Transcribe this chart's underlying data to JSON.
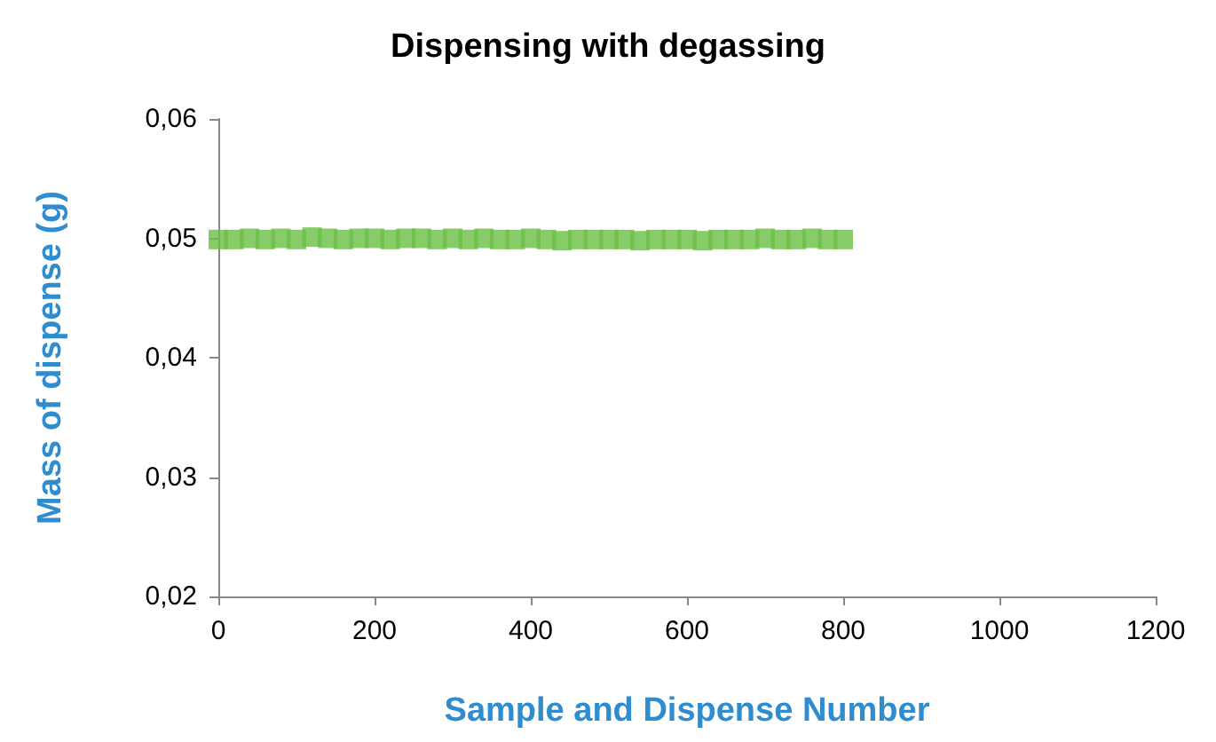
{
  "chart_data": {
    "type": "scatter",
    "title": "Dispensing with degassing",
    "xlabel": "Sample and Dispense Number",
    "ylabel": "Mass of dispense (g)",
    "x": [
      0,
      20,
      40,
      60,
      80,
      100,
      120,
      140,
      160,
      180,
      200,
      220,
      240,
      260,
      280,
      300,
      320,
      340,
      360,
      380,
      400,
      420,
      440,
      460,
      480,
      500,
      520,
      540,
      560,
      580,
      600,
      620,
      640,
      660,
      680,
      700,
      720,
      740,
      760,
      780,
      800
    ],
    "series": [
      {
        "color": "#6abf45",
        "values": [
          0.0499,
          0.0499,
          0.05,
          0.0499,
          0.05,
          0.0499,
          0.0501,
          0.05,
          0.0499,
          0.05,
          0.05,
          0.0499,
          0.05,
          0.05,
          0.0499,
          0.05,
          0.0499,
          0.05,
          0.0499,
          0.0499,
          0.05,
          0.0499,
          0.0498,
          0.0499,
          0.0499,
          0.0499,
          0.0499,
          0.0498,
          0.0499,
          0.0499,
          0.0499,
          0.0498,
          0.0499,
          0.0499,
          0.0499,
          0.05,
          0.0499,
          0.0499,
          0.05,
          0.0499,
          0.0499
        ]
      }
    ],
    "xlim": [
      0,
      1200
    ],
    "xticks": [
      0,
      200,
      400,
      600,
      800,
      1000,
      1200
    ],
    "ylim": [
      0.02,
      0.06
    ],
    "yticks": [
      {
        "value": 0.02,
        "label": "0,02"
      },
      {
        "value": 0.03,
        "label": "0,03"
      },
      {
        "value": 0.04,
        "label": "0,04"
      },
      {
        "value": 0.05,
        "label": "0,05"
      },
      {
        "value": 0.06,
        "label": "0,06"
      }
    ],
    "grid": false,
    "marker": "square"
  }
}
